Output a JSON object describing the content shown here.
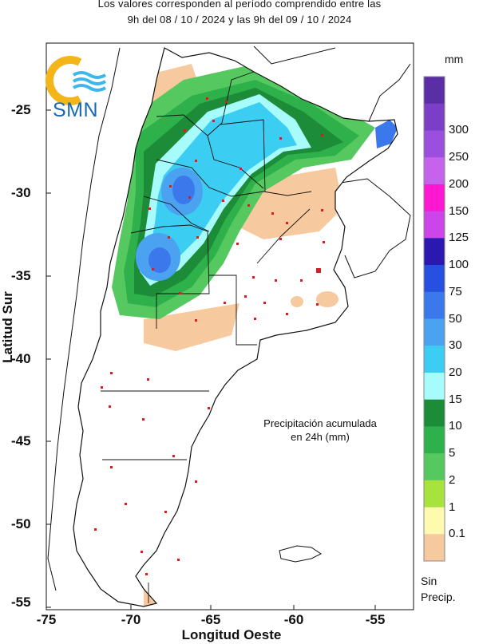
{
  "header": {
    "line1": "Los valores corresponden al período comprendido entre las",
    "line2": "9h del 08 / 10 / 2024  y las 9h del 09 / 10 / 2024"
  },
  "logo": {
    "text": "SMN"
  },
  "axes": {
    "ylabel": "Latitud Sur",
    "xlabel": "Longitud Oeste",
    "yticks": [
      "-25",
      "-30",
      "-35",
      "-40",
      "-45",
      "-50",
      "-55"
    ],
    "xticks": [
      "-75",
      "-70",
      "-65",
      "-60",
      "-55"
    ]
  },
  "map_view": {
    "lon_range": [
      -75,
      -52
    ],
    "lat_range": [
      -55,
      -21
    ]
  },
  "inset": {
    "line1": "Precipitación acumulada",
    "line2": "en 24h (mm)"
  },
  "legend": {
    "unit": "mm",
    "levels": [
      {
        "label": "",
        "color": "#5a2ea6"
      },
      {
        "label": "300",
        "color": "#7a3fc6"
      },
      {
        "label": "250",
        "color": "#9b4fde"
      },
      {
        "label": "200",
        "color": "#c563ec"
      },
      {
        "label": "150",
        "color": "#ff18d2"
      },
      {
        "label": "125",
        "color": "#cc45e8"
      },
      {
        "label": "100",
        "color": "#2a18b0"
      },
      {
        "label": "75",
        "color": "#2850e0"
      },
      {
        "label": "50",
        "color": "#3a78ec"
      },
      {
        "label": "30",
        "color": "#4ba2f0"
      },
      {
        "label": "20",
        "color": "#3ccdf2"
      },
      {
        "label": "15",
        "color": "#a8fbfb"
      },
      {
        "label": "10",
        "color": "#1c8c38"
      },
      {
        "label": "5",
        "color": "#2eb04a"
      },
      {
        "label": "2",
        "color": "#56c860"
      },
      {
        "label": "1",
        "color": "#a8e23c"
      },
      {
        "label": "0.1",
        "color": "#fefbb0"
      },
      {
        "label": "",
        "color": "#f7c99e"
      }
    ],
    "no_data_line1": "Sin",
    "no_data_line2": "Precip."
  },
  "colors": {
    "no_precip": "#f7c99e",
    "station": "#d42020",
    "border": "#111111"
  }
}
